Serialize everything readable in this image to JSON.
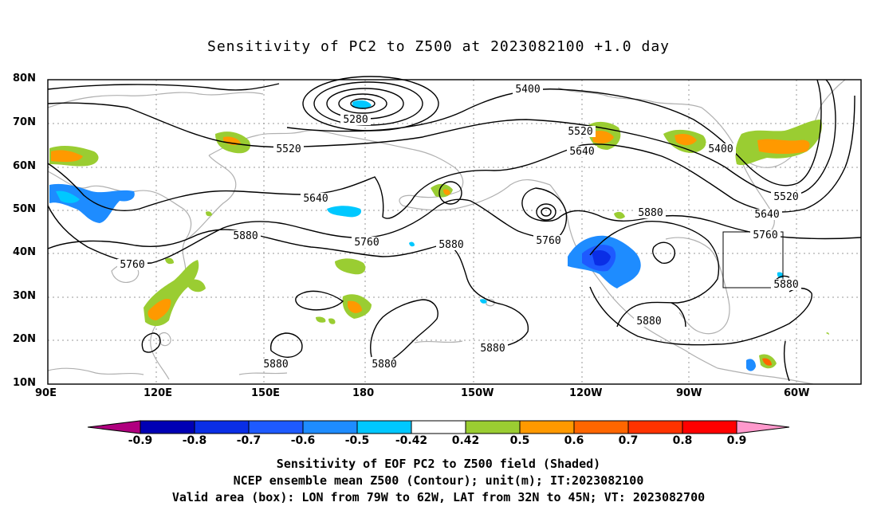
{
  "title": "Sensitivity of PC2 to Z500 at 2023082100 +1.0 day",
  "lat_labels": [
    "80N",
    "70N",
    "60N",
    "50N",
    "40N",
    "30N",
    "20N",
    "10N"
  ],
  "lon_labels": [
    "90E",
    "120E",
    "150E",
    "180",
    "150W",
    "120W",
    "90W",
    "60W"
  ],
  "contour_labels": [
    {
      "text": "5400"
    },
    {
      "text": "5280"
    },
    {
      "text": "5520"
    },
    {
      "text": "5520"
    },
    {
      "text": "5640"
    },
    {
      "text": "5400"
    },
    {
      "text": "5640"
    },
    {
      "text": "5520"
    },
    {
      "text": "5640"
    },
    {
      "text": "5880"
    },
    {
      "text": "5760"
    },
    {
      "text": "5880"
    },
    {
      "text": "5760"
    },
    {
      "text": "5880"
    },
    {
      "text": "5760"
    },
    {
      "text": "5760"
    },
    {
      "text": "5880"
    },
    {
      "text": "5880"
    },
    {
      "text": "5880"
    },
    {
      "text": "5880"
    },
    {
      "text": "5880"
    }
  ],
  "colorbar": {
    "labels": [
      "-0.9",
      "-0.8",
      "-0.7",
      "-0.6",
      "-0.5",
      "-0.42",
      "0.42",
      "0.5",
      "0.6",
      "0.7",
      "0.8",
      "0.9"
    ],
    "colors": [
      "#b0007f",
      "#0000b4",
      "#0a2ee6",
      "#1e5aff",
      "#1e8cff",
      "#00c8ff",
      "#ffffff",
      "#9acd32",
      "#ff9900",
      "#ff6600",
      "#ff3300",
      "#ff0000",
      "#ff99cc"
    ]
  },
  "footer": {
    "line1": "Sensitivity of EOF PC2 to Z500 field (Shaded)",
    "line2": "NCEP ensemble mean Z500 (Contour); unit(m); IT:2023082100",
    "line3": "Valid area (box): LON from 79W to 62W, LAT from 32N to 45N; VT: 2023082700"
  }
}
